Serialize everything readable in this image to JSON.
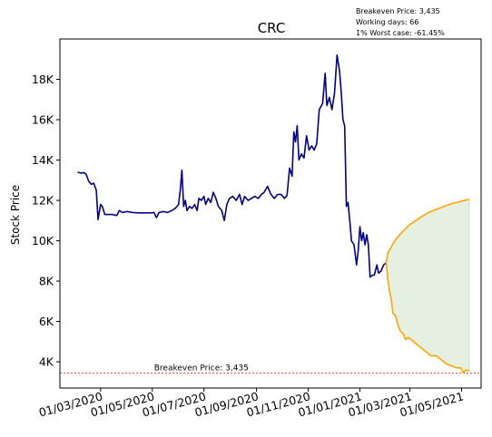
{
  "chart_data": {
    "type": "line",
    "title": "CRC",
    "xlabel": "",
    "ylabel": "Stock Price",
    "info_lines": [
      "Breakeven Price: 3,435",
      "Working days: 66",
      "1% Worst case: -61.45%"
    ],
    "breakeven": {
      "value": 3435,
      "label": "Breakeven Price: 3,435",
      "color": "#ff0000"
    },
    "x_ticks": [
      "2020-03-01",
      "2020-05-01",
      "2020-07-01",
      "2020-09-01",
      "2020-11-01",
      "2021-01-01",
      "2021-03-01",
      "2021-05-01"
    ],
    "x_tick_labels": [
      "01/03/2020",
      "01/05/2020",
      "01/07/2020",
      "01/09/2020",
      "01/11/2020",
      "01/01/2021",
      "01/03/2021",
      "01/05/2021"
    ],
    "y_ticks": [
      4000,
      6000,
      8000,
      10000,
      12000,
      14000,
      16000,
      18000
    ],
    "y_tick_labels": [
      "4K",
      "6K",
      "8K",
      "10K",
      "12K",
      "14K",
      "16K",
      "18K"
    ],
    "xlim": [
      "2020-01-13",
      "2021-05-24"
    ],
    "ylim": [
      2700,
      20000
    ],
    "grid": false,
    "colors": {
      "history": "#00008b",
      "upper": "#ffa500",
      "lower": "#ffa500",
      "fill": "#e5f0e1"
    },
    "series": [
      {
        "role": "history",
        "points": [
          [
            "2020-02-03",
            13400
          ],
          [
            "2020-02-07",
            13350
          ],
          [
            "2020-02-10",
            13380
          ],
          [
            "2020-02-13",
            13300
          ],
          [
            "2020-02-16",
            12950
          ],
          [
            "2020-02-19",
            12800
          ],
          [
            "2020-02-22",
            12850
          ],
          [
            "2020-02-25",
            12500
          ],
          [
            "2020-02-27",
            11050
          ],
          [
            "2020-03-01",
            11800
          ],
          [
            "2020-03-03",
            11700
          ],
          [
            "2020-03-06",
            11300
          ],
          [
            "2020-03-10",
            11300
          ],
          [
            "2020-03-15",
            11300
          ],
          [
            "2020-03-20",
            11250
          ],
          [
            "2020-03-23",
            11500
          ],
          [
            "2020-03-27",
            11400
          ],
          [
            "2020-04-01",
            11450
          ],
          [
            "2020-04-08",
            11400
          ],
          [
            "2020-04-15",
            11380
          ],
          [
            "2020-04-22",
            11380
          ],
          [
            "2020-04-29",
            11380
          ],
          [
            "2020-05-03",
            11400
          ],
          [
            "2020-05-06",
            11150
          ],
          [
            "2020-05-09",
            11400
          ],
          [
            "2020-05-14",
            11450
          ],
          [
            "2020-05-19",
            11400
          ],
          [
            "2020-05-24",
            11500
          ],
          [
            "2020-05-28",
            11600
          ],
          [
            "2020-06-01",
            11800
          ],
          [
            "2020-06-03",
            12500
          ],
          [
            "2020-06-05",
            13500
          ],
          [
            "2020-06-07",
            11700
          ],
          [
            "2020-06-09",
            12000
          ],
          [
            "2020-06-11",
            11500
          ],
          [
            "2020-06-14",
            11700
          ],
          [
            "2020-06-17",
            11600
          ],
          [
            "2020-06-20",
            11800
          ],
          [
            "2020-06-23",
            11500
          ],
          [
            "2020-06-25",
            12100
          ],
          [
            "2020-06-28",
            12000
          ],
          [
            "2020-07-01",
            12200
          ],
          [
            "2020-07-03",
            11800
          ],
          [
            "2020-07-06",
            12100
          ],
          [
            "2020-07-09",
            11900
          ],
          [
            "2020-07-12",
            12400
          ],
          [
            "2020-07-15",
            12100
          ],
          [
            "2020-07-18",
            11700
          ],
          [
            "2020-07-22",
            11500
          ],
          [
            "2020-07-25",
            11000
          ],
          [
            "2020-07-28",
            11800
          ],
          [
            "2020-07-31",
            12100
          ],
          [
            "2020-08-04",
            12200
          ],
          [
            "2020-08-08",
            12000
          ],
          [
            "2020-08-12",
            12300
          ],
          [
            "2020-08-15",
            11800
          ],
          [
            "2020-08-18",
            12200
          ],
          [
            "2020-08-22",
            12000
          ],
          [
            "2020-08-26",
            12100
          ],
          [
            "2020-08-30",
            12200
          ],
          [
            "2020-09-03",
            12100
          ],
          [
            "2020-09-07",
            12300
          ],
          [
            "2020-09-10",
            12400
          ],
          [
            "2020-09-14",
            12700
          ],
          [
            "2020-09-18",
            12300
          ],
          [
            "2020-09-22",
            12100
          ],
          [
            "2020-09-26",
            12300
          ],
          [
            "2020-09-30",
            12300
          ],
          [
            "2020-10-04",
            12100
          ],
          [
            "2020-10-07",
            12250
          ],
          [
            "2020-10-10",
            13600
          ],
          [
            "2020-10-13",
            13200
          ],
          [
            "2020-10-15",
            15400
          ],
          [
            "2020-10-17",
            14900
          ],
          [
            "2020-10-19",
            15700
          ],
          [
            "2020-10-21",
            14000
          ],
          [
            "2020-10-24",
            14300
          ],
          [
            "2020-10-27",
            14100
          ],
          [
            "2020-10-30",
            15200
          ],
          [
            "2020-11-02",
            14500
          ],
          [
            "2020-11-05",
            14700
          ],
          [
            "2020-11-08",
            14500
          ],
          [
            "2020-11-11",
            14800
          ],
          [
            "2020-11-14",
            16500
          ],
          [
            "2020-11-18",
            16800
          ],
          [
            "2020-11-21",
            18300
          ],
          [
            "2020-11-23",
            16700
          ],
          [
            "2020-11-26",
            17100
          ],
          [
            "2020-11-29",
            16500
          ],
          [
            "2020-12-02",
            17300
          ],
          [
            "2020-12-05",
            19200
          ],
          [
            "2020-12-08",
            18400
          ],
          [
            "2020-12-10",
            17300
          ],
          [
            "2020-12-12",
            16000
          ],
          [
            "2020-12-14",
            15700
          ],
          [
            "2020-12-16",
            11700
          ],
          [
            "2020-12-18",
            11900
          ],
          [
            "2020-12-20",
            11000
          ],
          [
            "2020-12-22",
            10000
          ],
          [
            "2020-12-25",
            9800
          ],
          [
            "2020-12-28",
            8800
          ],
          [
            "2020-12-30",
            9500
          ],
          [
            "2021-01-01",
            10700
          ],
          [
            "2021-01-03",
            10000
          ],
          [
            "2021-01-05",
            10400
          ],
          [
            "2021-01-07",
            9800
          ],
          [
            "2021-01-09",
            10300
          ],
          [
            "2021-01-11",
            9800
          ],
          [
            "2021-01-13",
            8200
          ],
          [
            "2021-01-16",
            8300
          ],
          [
            "2021-01-18",
            8300
          ],
          [
            "2021-01-21",
            8800
          ],
          [
            "2021-01-23",
            8400
          ],
          [
            "2021-01-26",
            8500
          ],
          [
            "2021-01-29",
            8800
          ],
          [
            "2021-02-01",
            8900
          ]
        ]
      },
      {
        "role": "upper",
        "points": [
          [
            "2021-02-01",
            8900
          ],
          [
            "2021-02-03",
            9400
          ],
          [
            "2021-02-06",
            9600
          ],
          [
            "2021-02-09",
            9850
          ],
          [
            "2021-02-13",
            10100
          ],
          [
            "2021-02-18",
            10350
          ],
          [
            "2021-02-24",
            10600
          ],
          [
            "2021-03-01",
            10800
          ],
          [
            "2021-03-08",
            11000
          ],
          [
            "2021-03-15",
            11200
          ],
          [
            "2021-03-23",
            11400
          ],
          [
            "2021-04-01",
            11550
          ],
          [
            "2021-04-10",
            11700
          ],
          [
            "2021-04-20",
            11850
          ],
          [
            "2021-04-30",
            11950
          ],
          [
            "2021-05-10",
            12050
          ]
        ]
      },
      {
        "role": "lower",
        "points": [
          [
            "2021-02-01",
            8900
          ],
          [
            "2021-02-03",
            8100
          ],
          [
            "2021-02-05",
            7500
          ],
          [
            "2021-02-07",
            7100
          ],
          [
            "2021-02-09",
            6400
          ],
          [
            "2021-02-12",
            6300
          ],
          [
            "2021-02-15",
            5800
          ],
          [
            "2021-02-18",
            5500
          ],
          [
            "2021-02-21",
            5400
          ],
          [
            "2021-02-24",
            5100
          ],
          [
            "2021-02-27",
            5200
          ],
          [
            "2021-03-03",
            5100
          ],
          [
            "2021-03-08",
            4900
          ],
          [
            "2021-03-14",
            4700
          ],
          [
            "2021-03-20",
            4500
          ],
          [
            "2021-03-26",
            4300
          ],
          [
            "2021-04-01",
            4300
          ],
          [
            "2021-04-07",
            4100
          ],
          [
            "2021-04-13",
            3900
          ],
          [
            "2021-04-19",
            3800
          ],
          [
            "2021-04-25",
            3700
          ],
          [
            "2021-04-30",
            3700
          ],
          [
            "2021-05-03",
            3450
          ],
          [
            "2021-05-06",
            3600
          ],
          [
            "2021-05-10",
            3550
          ]
        ]
      }
    ]
  }
}
